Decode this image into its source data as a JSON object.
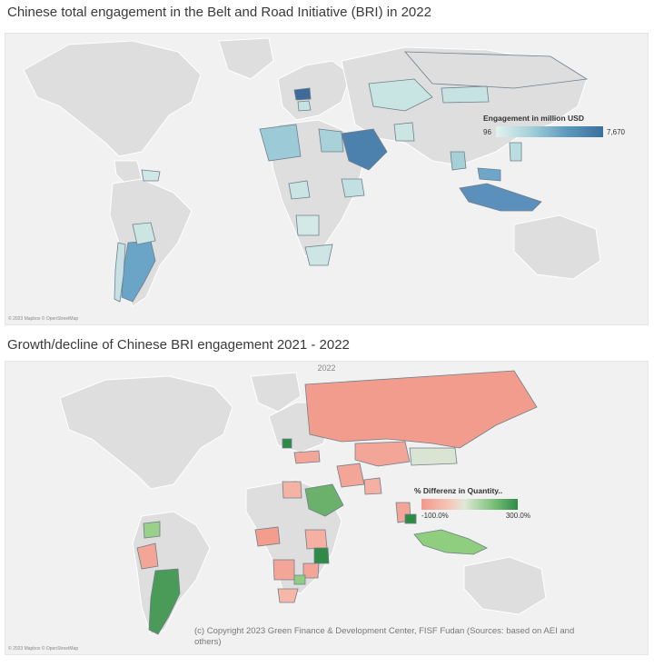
{
  "maps": [
    {
      "title": "Chinese total engagement in the Belt and Road Initiative (BRI) in 2022",
      "attribution": "© 2023 Mapbox © OpenStreetMap",
      "legend": {
        "title": "Engagement in million USD",
        "min": "96",
        "max": "7,670",
        "color_low": "#e2f2f0",
        "color_high": "#3b6f9e"
      }
    },
    {
      "title": "Growth/decline of Chinese BRI engagement 2021 - 2022",
      "year": "2022",
      "attribution": "© 2023 Mapbox © OpenStreetMap",
      "legend": {
        "title": "% Differenz in Quantity..",
        "min": "-100.0%",
        "max": "300.0%",
        "color_low": "#f3988a",
        "color_high": "#2f8a45"
      },
      "copyright": "(c) Copyright 2023 Green Finance & Development Center, FISF Fudan (Sources: based on AEI and others)"
    }
  ]
}
